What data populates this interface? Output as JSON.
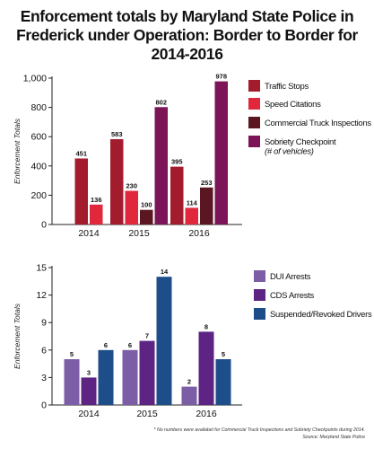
{
  "title": "Enforcement totals by Maryland State Police in Frederick under Operation: Border to Border for 2014-2016",
  "footnote": "* No numbers were availabel for Commercial Truck Inspections and Sobriety Checkpoints during 2014.",
  "source": "Source: Maryland State Police",
  "chart_data": [
    {
      "type": "bar",
      "categories": [
        "2014",
        "2015",
        "2016"
      ],
      "ylabel": "Enforcement Totals",
      "ylim": [
        0,
        1000
      ],
      "yticks": [
        0,
        200,
        400,
        600,
        800,
        1000
      ],
      "ytick_labels": [
        "0",
        "200",
        "400",
        "600",
        "800",
        "1,000"
      ],
      "grid": false,
      "legend_position": "right",
      "series": [
        {
          "name": "Traffic Stops",
          "color": "#a31c2e",
          "values": [
            451,
            583,
            395
          ]
        },
        {
          "name": "Speed Citations",
          "color": "#e0273c",
          "values": [
            136,
            230,
            114
          ]
        },
        {
          "name": "Commercial Truck Inspections",
          "color": "#5a1722",
          "values": [
            null,
            100,
            253
          ]
        },
        {
          "name": "Sobriety Checkpoint",
          "name_note": "(# of vehicles)",
          "color": "#7b1558",
          "values": [
            null,
            802,
            978
          ]
        }
      ]
    },
    {
      "type": "bar",
      "categories": [
        "2014",
        "2015",
        "2016"
      ],
      "ylabel": "Enforcement Totals",
      "ylim": [
        0,
        15
      ],
      "yticks": [
        0,
        3,
        6,
        9,
        12,
        15
      ],
      "ytick_labels": [
        "0",
        "3",
        "6",
        "9",
        "12",
        "15"
      ],
      "grid": false,
      "legend_position": "right",
      "series": [
        {
          "name": "DUI Arrests",
          "color": "#7b5ea6",
          "values": [
            5,
            6,
            2
          ]
        },
        {
          "name": "CDS Arrests",
          "color": "#5d2483",
          "values": [
            3,
            7,
            8
          ]
        },
        {
          "name": "Suspended/Revoked Drivers",
          "color": "#1d4e89",
          "values": [
            6,
            14,
            5
          ]
        }
      ]
    }
  ]
}
